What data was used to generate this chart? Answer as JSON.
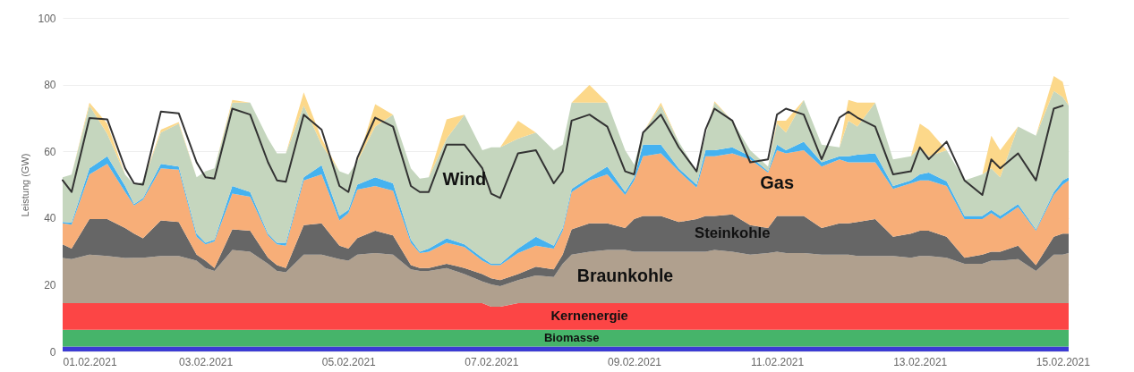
{
  "chart_data": {
    "type": "area",
    "stacked": true,
    "ylabel": "Leistung (GW)",
    "grid": "y",
    "xlim": [
      "2021-02-01",
      "2021-02-15T02:00"
    ],
    "xticks": [
      {
        "value": "2021-02-01",
        "label": "01.02.2021"
      },
      {
        "value": "2021-02-03",
        "label": "03.02.2021"
      },
      {
        "value": "2021-02-05",
        "label": "05.02.2021"
      },
      {
        "value": "2021-02-07",
        "label": "07.02.2021"
      },
      {
        "value": "2021-02-09",
        "label": "09.02.2021"
      },
      {
        "value": "2021-02-11",
        "label": "11.02.2021"
      },
      {
        "value": "2021-02-13",
        "label": "13.02.2021"
      },
      {
        "value": "2021-02-15",
        "label": "15.02.2021"
      }
    ],
    "ylim": [
      0,
      100
    ],
    "yticks": [
      0,
      20,
      40,
      60,
      80,
      100
    ],
    "x": [
      "2021-02-01T00:00",
      "2021-02-01T03:00",
      "2021-02-01T09:00",
      "2021-02-01T15:00",
      "2021-02-01T21:00",
      "2021-02-02T00:00",
      "2021-02-02T03:00",
      "2021-02-02T09:00",
      "2021-02-02T15:00",
      "2021-02-02T21:00",
      "2021-02-03T00:00",
      "2021-02-03T03:00",
      "2021-02-03T09:00",
      "2021-02-03T15:00",
      "2021-02-03T21:00",
      "2021-02-04T00:00",
      "2021-02-04T03:00",
      "2021-02-04T09:00",
      "2021-02-04T15:00",
      "2021-02-04T21:00",
      "2021-02-05T00:00",
      "2021-02-05T03:00",
      "2021-02-05T09:00",
      "2021-02-05T15:00",
      "2021-02-05T21:00",
      "2021-02-06T00:00",
      "2021-02-06T03:00",
      "2021-02-06T09:00",
      "2021-02-06T15:00",
      "2021-02-06T21:00",
      "2021-02-07T00:00",
      "2021-02-07T03:00",
      "2021-02-07T09:00",
      "2021-02-07T15:00",
      "2021-02-07T21:00",
      "2021-02-08T00:00",
      "2021-02-08T03:00",
      "2021-02-08T09:00",
      "2021-02-08T15:00",
      "2021-02-08T21:00",
      "2021-02-09T00:00",
      "2021-02-09T03:00",
      "2021-02-09T09:00",
      "2021-02-09T15:00",
      "2021-02-09T21:00",
      "2021-02-10T00:00",
      "2021-02-10T03:00",
      "2021-02-10T09:00",
      "2021-02-10T15:00",
      "2021-02-10T21:00",
      "2021-02-11T00:00",
      "2021-02-11T03:00",
      "2021-02-11T09:00",
      "2021-02-11T15:00",
      "2021-02-11T21:00",
      "2021-02-12T00:00",
      "2021-02-12T03:00",
      "2021-02-12T09:00",
      "2021-02-12T15:00",
      "2021-02-12T21:00",
      "2021-02-13T00:00",
      "2021-02-13T03:00",
      "2021-02-13T09:00",
      "2021-02-13T15:00",
      "2021-02-13T21:00",
      "2021-02-14T00:00",
      "2021-02-14T03:00",
      "2021-02-14T09:00",
      "2021-02-14T15:00",
      "2021-02-14T21:00",
      "2021-02-15T00:00",
      "2021-02-15T02:00"
    ],
    "series": [
      {
        "color": "#3b3bd4",
        "values": [
          1.5,
          1.5,
          1.5,
          1.5,
          1.5,
          1.5,
          1.5,
          1.5,
          1.5,
          1.5,
          1.5,
          1.5,
          1.5,
          1.5,
          1.5,
          1.5,
          1.5,
          1.5,
          1.5,
          1.5,
          1.5,
          1.5,
          1.5,
          1.5,
          1.5,
          1.5,
          1.5,
          1.5,
          1.5,
          1.5,
          1.5,
          1.5,
          1.5,
          1.5,
          1.5,
          1.5,
          1.5,
          1.5,
          1.5,
          1.5,
          1.5,
          1.5,
          1.5,
          1.5,
          1.5,
          1.5,
          1.5,
          1.5,
          1.5,
          1.5,
          1.5,
          1.5,
          1.5,
          1.5,
          1.5,
          1.5,
          1.5,
          1.5,
          1.5,
          1.5,
          1.5,
          1.5,
          1.5,
          1.5,
          1.5,
          1.5,
          1.5,
          1.5,
          1.5,
          1.5,
          1.5,
          1.5
        ]
      },
      {
        "name": "Biomasse",
        "color": "#46b46a",
        "values": [
          5,
          5,
          5,
          5,
          5,
          5,
          5,
          5,
          5,
          5,
          5,
          5,
          5,
          5,
          5,
          5,
          5,
          5,
          5,
          5,
          5,
          5,
          5,
          5,
          5,
          5,
          5,
          5,
          5,
          5,
          5,
          5,
          5,
          5,
          5,
          5,
          5,
          5,
          5,
          5,
          5,
          5,
          5,
          5,
          5,
          5,
          5,
          5,
          5,
          5,
          5,
          5,
          5,
          5,
          5,
          5,
          5,
          5,
          5,
          5,
          5,
          5,
          5,
          5,
          5,
          5,
          5,
          5,
          5,
          5,
          5,
          5
        ]
      },
      {
        "name": "Kernenergie",
        "color": "#fc4545",
        "values": [
          8,
          8,
          8,
          8,
          8,
          8,
          8,
          8,
          8,
          8,
          8,
          8,
          8,
          8,
          8,
          8,
          8,
          8,
          8,
          8,
          8,
          8,
          8,
          8,
          8,
          8,
          8,
          8,
          8,
          8,
          6.9,
          6.9,
          8,
          8,
          8,
          8,
          8,
          8,
          8,
          8,
          8,
          8,
          8,
          8,
          8,
          8,
          8,
          8,
          8,
          8,
          8,
          8,
          8,
          8,
          8,
          8,
          8,
          8,
          8,
          8,
          8,
          8,
          8,
          8,
          8,
          8,
          8,
          8,
          8,
          8,
          8,
          8
        ]
      },
      {
        "name": "Braunkohle",
        "color": "#b0a08e",
        "values": [
          13.5,
          13.2,
          14.5,
          14.1,
          13.5,
          13.6,
          13.6,
          14.1,
          14.1,
          12.7,
          10.5,
          9.6,
          15.9,
          15.4,
          11.8,
          9.6,
          9.2,
          14.5,
          14.5,
          13.2,
          12.7,
          14.5,
          15,
          14.5,
          10.1,
          9.6,
          9.6,
          10.5,
          8.7,
          6.5,
          6.7,
          6.2,
          6.9,
          8.3,
          7.8,
          11.8,
          14.5,
          15.4,
          15.9,
          15.9,
          15.4,
          15.4,
          15.4,
          15.4,
          15.4,
          15.4,
          15.9,
          15.4,
          14.5,
          15,
          15.4,
          15,
          15,
          14.5,
          14.5,
          14.5,
          14.1,
          14.1,
          14.1,
          13.6,
          14.1,
          14.1,
          13.6,
          11.8,
          11.8,
          12.7,
          12.7,
          13.2,
          9.6,
          14.5,
          14.5,
          15
        ]
      },
      {
        "name": "Steinkohle",
        "color": "#666666",
        "values": [
          4.1,
          3.1,
          10.7,
          11.1,
          9,
          7.2,
          5.8,
          10.7,
          10.2,
          1.8,
          2.2,
          0.9,
          6.2,
          6.3,
          1.8,
          1.8,
          1.3,
          8.9,
          9.4,
          4,
          3.6,
          5,
          6.7,
          5.8,
          1.3,
          0.9,
          0.9,
          1.3,
          1.8,
          2.2,
          1.8,
          1.8,
          1.8,
          2.6,
          2.3,
          2.7,
          7.6,
          8.5,
          8,
          6.6,
          9.8,
          10.7,
          10.7,
          8.9,
          9.8,
          10.7,
          10.2,
          11.2,
          8.9,
          7.5,
          10.7,
          11.1,
          11.1,
          8,
          9.4,
          9.4,
          10.2,
          11.1,
          5.8,
          7.2,
          7.6,
          7.6,
          6.3,
          1.8,
          2.7,
          2.7,
          2.7,
          4,
          1.8,
          5.4,
          6.3,
          5.8
        ]
      },
      {
        "name": "Gas",
        "color": "#f7ae78",
        "values": [
          6.3,
          7.2,
          13.4,
          16.5,
          10.8,
          8.5,
          11.6,
          15.6,
          15.7,
          5.4,
          4.9,
          8,
          10.7,
          10.2,
          6.7,
          6.2,
          6.7,
          13.4,
          14.7,
          7.6,
          10.7,
          14.5,
          13.4,
          13.4,
          6.7,
          4.5,
          4.9,
          6.3,
          6.3,
          4,
          4,
          4.5,
          6.3,
          6.3,
          6.2,
          7.2,
          11.2,
          12.9,
          14.7,
          9.9,
          11.6,
          17.9,
          18.8,
          15.2,
          9.4,
          17.9,
          17.9,
          18.3,
          19.7,
          16.6,
          19.7,
          18.8,
          19.7,
          18.4,
          19.2,
          18.3,
          17.9,
          17,
          14.3,
          15.1,
          15.1,
          15.1,
          15.2,
          11.6,
          10.7,
          11.6,
          9.8,
          11.6,
          10.3,
          12.5,
          14.7,
          16
        ]
      },
      {
        "color": "#45b2f0",
        "values": [
          0.4,
          0.6,
          1.8,
          2.3,
          1.8,
          0.4,
          0.5,
          1.3,
          0.9,
          0.9,
          0.5,
          0.5,
          2.3,
          1.4,
          0.5,
          0.5,
          0.9,
          0.9,
          2.7,
          1.3,
          0.9,
          1.5,
          2.6,
          2.2,
          0.9,
          0.4,
          0.9,
          1.3,
          0.8,
          0.9,
          0.4,
          0.4,
          1.3,
          2.7,
          0.9,
          0.8,
          0.9,
          0.9,
          2.3,
          0.9,
          0.9,
          3.5,
          2.6,
          0.9,
          0.9,
          1.8,
          1.8,
          1.8,
          0.9,
          0.4,
          1.7,
          0.9,
          2.6,
          1.3,
          0.9,
          1.8,
          2.3,
          2.7,
          0.9,
          0.9,
          1.8,
          2.3,
          1.4,
          0.9,
          0.9,
          0.9,
          0.9,
          0.9,
          0.4,
          0.9,
          1.3,
          0.9
        ]
      },
      {
        "name": "Wind",
        "color": "#c5d6be",
        "values": [
          13.4,
          14.4,
          18.8,
          6.7,
          3.4,
          5.8,
          4.9,
          9.4,
          12.9,
          16.9,
          21.4,
          21.4,
          25,
          26.8,
          28.5,
          26.8,
          26.8,
          21.5,
          6.2,
          13.4,
          10.6,
          7,
          15.2,
          20.6,
          21.4,
          21.9,
          21.4,
          29.9,
          38.9,
          32.2,
          34.9,
          34.9,
          33,
          31.2,
          28.6,
          25,
          25.9,
          22.4,
          19.2,
          12.5,
          3.8,
          3.6,
          11.7,
          8,
          4,
          4.4,
          14.3,
          8,
          1.8,
          1.4,
          6.3,
          5.3,
          12.5,
          5.3,
          2.7,
          10.7,
          8.4,
          15.2,
          8,
          7.2,
          8.1,
          4.9,
          9.3,
          10.7,
          12.5,
          12.5,
          11.6,
          23.2,
          28.1,
          30.3,
          25,
          21.5
        ]
      },
      {
        "color": "#fcd88a",
        "values": [
          0,
          0,
          0.9,
          3.1,
          0,
          0,
          0,
          0.9,
          0.5,
          0,
          0,
          0,
          0.8,
          0,
          0,
          0,
          0,
          4,
          1.8,
          0,
          0,
          0,
          6.7,
          0,
          0,
          0,
          0,
          5.8,
          0,
          0,
          0,
          0,
          5.4,
          0,
          0,
          0,
          0,
          5.3,
          0,
          0,
          0,
          0,
          0.9,
          0,
          0,
          0,
          0.4,
          0,
          0,
          0,
          0.9,
          3.6,
          0,
          0,
          0,
          6.2,
          7.2,
          0,
          0,
          0,
          7.1,
          8,
          0,
          0,
          0,
          9.8,
          8.1,
          0,
          0,
          4.5,
          4.5,
          0
        ]
      },
      {
        "type": "line",
        "color": "#333333",
        "values": [
          51.3,
          47.8,
          70,
          69.6,
          54.9,
          50.4,
          50,
          71.9,
          71.4,
          56.7,
          52.2,
          51.8,
          72.8,
          71,
          56.7,
          51.3,
          50.9,
          71,
          66.5,
          49.6,
          47.8,
          58,
          70.1,
          67.4,
          49.6,
          47.8,
          47.8,
          62,
          62,
          54.9,
          47.3,
          46,
          59.4,
          60.3,
          50.4,
          54,
          69.2,
          71,
          67.4,
          54,
          53.1,
          65.6,
          71,
          61.2,
          54,
          66.5,
          72.8,
          69.2,
          56.7,
          57.6,
          71,
          72.8,
          71,
          57.6,
          70.1,
          71.9,
          70.1,
          67.4,
          53.1,
          54,
          61.2,
          57.6,
          62.9,
          51.3,
          46.9,
          57.6,
          54.9,
          59.4,
          51.3,
          72.8,
          73.7,
          null
        ]
      }
    ]
  }
}
